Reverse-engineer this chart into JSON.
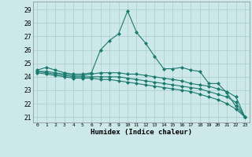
{
  "title": "",
  "xlabel": "Humidex (Indice chaleur)",
  "bg_color": "#cce8e8",
  "grid_color": "#aacccc",
  "line_color": "#1a7a6e",
  "xlim": [
    -0.5,
    23.5
  ],
  "ylim": [
    20.6,
    29.6
  ],
  "yticks": [
    21,
    22,
    23,
    24,
    25,
    26,
    27,
    28,
    29
  ],
  "xticks": [
    0,
    1,
    2,
    3,
    4,
    5,
    6,
    7,
    8,
    9,
    10,
    11,
    12,
    13,
    14,
    15,
    16,
    17,
    18,
    19,
    20,
    21,
    22,
    23
  ],
  "series": [
    {
      "x": [
        0,
        1,
        2,
        3,
        4,
        5,
        6,
        7,
        8,
        9,
        10,
        11,
        12,
        13,
        14,
        15,
        16,
        17,
        18,
        19,
        20,
        21,
        22,
        23
      ],
      "y": [
        24.5,
        24.7,
        24.5,
        24.3,
        24.2,
        24.2,
        24.3,
        26.0,
        26.7,
        27.2,
        28.9,
        27.3,
        26.5,
        25.5,
        24.6,
        24.6,
        24.7,
        24.5,
        24.4,
        23.5,
        23.5,
        22.8,
        21.8,
        21.0
      ]
    },
    {
      "x": [
        0,
        1,
        2,
        3,
        4,
        5,
        6,
        7,
        8,
        9,
        10,
        11,
        12,
        13,
        14,
        15,
        16,
        17,
        18,
        19,
        20,
        21,
        22,
        23
      ],
      "y": [
        24.4,
        24.4,
        24.3,
        24.2,
        24.1,
        24.1,
        24.2,
        24.3,
        24.3,
        24.3,
        24.2,
        24.2,
        24.1,
        24.0,
        23.9,
        23.8,
        23.7,
        23.5,
        23.4,
        23.3,
        23.1,
        22.9,
        22.5,
        21.0
      ]
    },
    {
      "x": [
        0,
        1,
        2,
        3,
        4,
        5,
        6,
        7,
        8,
        9,
        10,
        11,
        12,
        13,
        14,
        15,
        16,
        17,
        18,
        19,
        20,
        21,
        22,
        23
      ],
      "y": [
        24.4,
        24.3,
        24.2,
        24.1,
        24.0,
        24.0,
        24.0,
        24.0,
        24.0,
        24.0,
        23.9,
        23.8,
        23.7,
        23.6,
        23.5,
        23.4,
        23.3,
        23.2,
        23.1,
        22.9,
        22.7,
        22.5,
        22.1,
        21.0
      ]
    },
    {
      "x": [
        0,
        1,
        2,
        3,
        4,
        5,
        6,
        7,
        8,
        9,
        10,
        11,
        12,
        13,
        14,
        15,
        16,
        17,
        18,
        19,
        20,
        21,
        22,
        23
      ],
      "y": [
        24.3,
        24.2,
        24.1,
        24.0,
        23.9,
        23.9,
        23.9,
        23.8,
        23.8,
        23.7,
        23.6,
        23.5,
        23.4,
        23.3,
        23.2,
        23.1,
        23.0,
        22.9,
        22.7,
        22.5,
        22.3,
        22.0,
        21.6,
        21.0
      ]
    }
  ]
}
